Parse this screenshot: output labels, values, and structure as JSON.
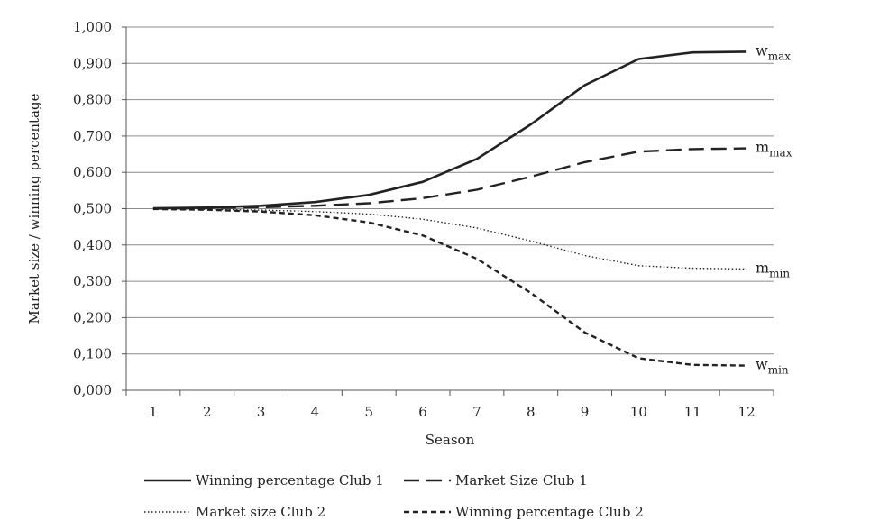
{
  "chart_data": {
    "type": "line",
    "title": "",
    "xlabel": "Season",
    "ylabel": "Market size / winning percentage",
    "x": [
      "1",
      "2",
      "3",
      "4",
      "5",
      "6",
      "7",
      "8",
      "9",
      "10",
      "11",
      "12"
    ],
    "y_ticks": [
      "0,000",
      "0,100",
      "0,200",
      "0,300",
      "0,400",
      "0,500",
      "0,600",
      "0,700",
      "0,800",
      "0,900",
      "1,000"
    ],
    "ylim": [
      0,
      1
    ],
    "grid": "horizontal",
    "legend_position": "bottom",
    "series": [
      {
        "name": "Winning percentage Club 1",
        "style": "solid",
        "end_label": {
          "main": "w",
          "sub": "max"
        },
        "values": [
          0.501,
          0.503,
          0.508,
          0.518,
          0.538,
          0.574,
          0.637,
          0.732,
          0.84,
          0.912,
          0.93,
          0.932
        ]
      },
      {
        "name": "Market Size Club 1",
        "style": "long-dash",
        "end_label": {
          "main": "m",
          "sub": "max"
        },
        "values": [
          0.5,
          0.502,
          0.504,
          0.508,
          0.515,
          0.529,
          0.552,
          0.588,
          0.628,
          0.657,
          0.664,
          0.666
        ]
      },
      {
        "name": "Market size Club 2",
        "style": "dotted",
        "end_label": {
          "main": "m",
          "sub": "min"
        },
        "values": [
          0.5,
          0.498,
          0.496,
          0.492,
          0.485,
          0.471,
          0.447,
          0.411,
          0.371,
          0.343,
          0.336,
          0.334
        ]
      },
      {
        "name": "Winning percentage Club 2",
        "style": "short-dash",
        "end_label": {
          "main": "w",
          "sub": "min"
        },
        "values": [
          0.499,
          0.497,
          0.492,
          0.482,
          0.462,
          0.426,
          0.362,
          0.268,
          0.159,
          0.088,
          0.07,
          0.068
        ]
      }
    ]
  }
}
